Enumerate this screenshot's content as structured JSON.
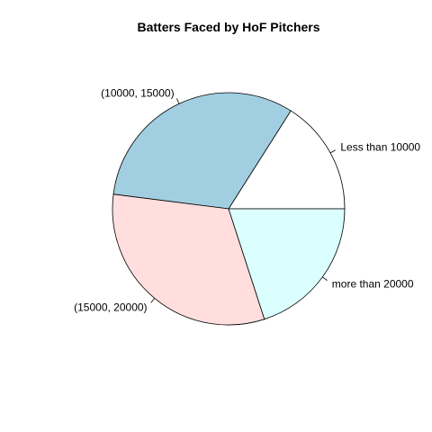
{
  "chart_data": {
    "type": "pie",
    "title": "Batters Faced by HoF Pitchers",
    "start_angle_deg": 0,
    "direction": "counterclockwise",
    "slices": [
      {
        "label": "Less than 10000",
        "value": 16,
        "color": "#ffffff"
      },
      {
        "label": "(10000, 15000)",
        "value": 32,
        "color": "#a1cfe1"
      },
      {
        "label": "(15000, 20000)",
        "value": 32,
        "color": "#ffdedd"
      },
      {
        "label": "more than 20000",
        "value": 20,
        "color": "#dbffff"
      }
    ]
  }
}
